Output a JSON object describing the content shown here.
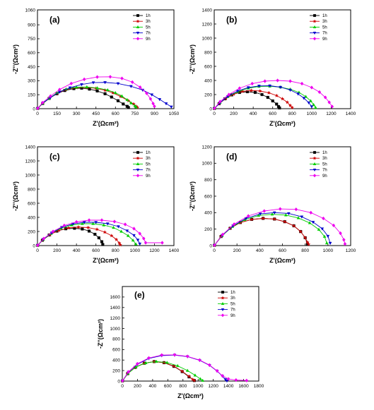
{
  "colors": {
    "1h": "#000000",
    "3h": "#cc0000",
    "5h": "#00cc00",
    "7h": "#0000cc",
    "9h": "#ee00ee"
  },
  "markers": {
    "1h": "square",
    "3h": "star",
    "5h": "triangle-up",
    "7h": "triangle-down",
    "9h": "diamond"
  },
  "chart_data": [
    {
      "panel": "a",
      "label": "(a)",
      "type": "scatter",
      "xlabel": "Z'(Ωcm²)",
      "ylabel": "-Z''(Ωcm²)",
      "xlim": [
        0,
        1050
      ],
      "ylim": [
        0,
        1060
      ],
      "xticks": [
        0,
        150,
        300,
        450,
        600,
        750,
        900,
        1050
      ],
      "yticks": [
        0,
        150,
        300,
        450,
        600,
        750,
        900,
        1060
      ],
      "yticklabels": [
        "0",
        "150",
        "300",
        "450",
        "600",
        "750",
        "900",
        "1060"
      ],
      "legend": "top-right",
      "series": [
        {
          "name": "1h",
          "x": [
            2,
            40,
            90,
            150,
            210,
            280,
            340,
            400,
            460,
            520,
            570,
            620,
            660,
            690,
            700
          ],
          "y": [
            3,
            55,
            110,
            160,
            195,
            215,
            220,
            210,
            190,
            160,
            125,
            85,
            50,
            25,
            12
          ]
        },
        {
          "name": "3h",
          "x": [
            2,
            40,
            90,
            150,
            220,
            300,
            380,
            450,
            520,
            580,
            640,
            700,
            740,
            760,
            770
          ],
          "y": [
            3,
            55,
            110,
            165,
            205,
            225,
            228,
            218,
            198,
            170,
            130,
            85,
            50,
            25,
            12
          ]
        },
        {
          "name": "5h",
          "x": [
            2,
            40,
            90,
            150,
            220,
            300,
            380,
            460,
            540,
            600,
            650,
            690,
            720,
            750,
            760
          ],
          "y": [
            3,
            55,
            110,
            170,
            210,
            230,
            232,
            222,
            200,
            170,
            135,
            95,
            60,
            30,
            15
          ]
        },
        {
          "name": "7h",
          "x": [
            2,
            40,
            100,
            170,
            250,
            340,
            430,
            520,
            620,
            720,
            810,
            880,
            940,
            990,
            1030
          ],
          "y": [
            3,
            60,
            120,
            180,
            225,
            260,
            280,
            282,
            270,
            240,
            200,
            150,
            100,
            55,
            20
          ]
        },
        {
          "name": "9h",
          "x": [
            2,
            40,
            100,
            170,
            260,
            360,
            460,
            560,
            650,
            730,
            790,
            840,
            870,
            890,
            900
          ],
          "y": [
            3,
            65,
            135,
            205,
            270,
            315,
            340,
            342,
            325,
            285,
            230,
            165,
            105,
            55,
            25
          ]
        }
      ]
    },
    {
      "panel": "b",
      "label": "(b)",
      "type": "scatter",
      "xlabel": "Z'(Ωcm²)",
      "ylabel": "-Z''(Ωcm²)",
      "xlim": [
        0,
        1400
      ],
      "ylim": [
        0,
        1400
      ],
      "xticks": [
        0,
        200,
        400,
        600,
        800,
        1000,
        1200,
        1400
      ],
      "yticks": [
        0,
        200,
        400,
        600,
        800,
        1000,
        1200,
        1400
      ],
      "legend": "top-right",
      "series": [
        {
          "name": "1h",
          "x": [
            2,
            50,
            110,
            180,
            260,
            340,
            420,
            490,
            550,
            600,
            640,
            660,
            670
          ],
          "y": [
            3,
            70,
            140,
            195,
            230,
            240,
            230,
            200,
            160,
            110,
            65,
            30,
            10
          ]
        },
        {
          "name": "3h",
          "x": [
            2,
            50,
            120,
            200,
            290,
            380,
            470,
            560,
            640,
            700,
            750,
            780,
            800
          ],
          "y": [
            3,
            70,
            145,
            205,
            245,
            258,
            250,
            225,
            185,
            140,
            90,
            45,
            15
          ]
        },
        {
          "name": "5h",
          "x": [
            2,
            60,
            140,
            240,
            350,
            460,
            570,
            680,
            780,
            870,
            940,
            990,
            1020,
            1040
          ],
          "y": [
            3,
            85,
            170,
            240,
            290,
            315,
            318,
            305,
            275,
            230,
            170,
            110,
            55,
            15
          ]
        },
        {
          "name": "7h",
          "x": [
            2,
            60,
            140,
            240,
            350,
            460,
            570,
            680,
            780,
            860,
            920,
            970,
            1000
          ],
          "y": [
            3,
            85,
            175,
            250,
            300,
            322,
            325,
            305,
            265,
            210,
            150,
            85,
            30
          ]
        },
        {
          "name": "9h",
          "x": [
            2,
            60,
            150,
            260,
            390,
            520,
            650,
            780,
            900,
            1000,
            1080,
            1140,
            1180,
            1210
          ],
          "y": [
            3,
            100,
            200,
            290,
            355,
            390,
            400,
            390,
            355,
            300,
            235,
            160,
            90,
            30
          ]
        }
      ]
    },
    {
      "panel": "c",
      "label": "(c)",
      "type": "scatter",
      "xlabel": "Z'(Ωcm²)",
      "ylabel": "-Z''(Ωcm²)",
      "xlim": [
        0,
        1400
      ],
      "ylim": [
        0,
        1400
      ],
      "xticks": [
        0,
        200,
        400,
        600,
        800,
        1000,
        1200,
        1400
      ],
      "yticks": [
        0,
        200,
        400,
        600,
        800,
        1000,
        1200,
        1400
      ],
      "legend": "top-right",
      "series": [
        {
          "name": "1h",
          "x": [
            2,
            50,
            120,
            200,
            290,
            380,
            460,
            530,
            590,
            630,
            660,
            670
          ],
          "y": [
            3,
            75,
            150,
            205,
            238,
            245,
            235,
            205,
            160,
            110,
            55,
            15
          ]
        },
        {
          "name": "3h",
          "x": [
            2,
            55,
            130,
            220,
            320,
            420,
            520,
            610,
            690,
            760,
            810,
            840,
            850
          ],
          "y": [
            3,
            78,
            155,
            215,
            250,
            262,
            255,
            230,
            190,
            140,
            85,
            35,
            10
          ]
        },
        {
          "name": "5h",
          "x": [
            2,
            60,
            140,
            240,
            350,
            460,
            570,
            680,
            780,
            860,
            930,
            980,
            1010
          ],
          "y": [
            3,
            85,
            170,
            245,
            290,
            310,
            310,
            290,
            255,
            200,
            140,
            75,
            20
          ]
        },
        {
          "name": "7h",
          "x": [
            2,
            60,
            145,
            250,
            365,
            480,
            600,
            720,
            830,
            920,
            990,
            1030,
            1050
          ],
          "y": [
            3,
            90,
            180,
            260,
            308,
            330,
            330,
            310,
            270,
            210,
            145,
            80,
            25
          ]
        },
        {
          "name": "9h",
          "x": [
            2,
            65,
            160,
            275,
            400,
            530,
            660,
            790,
            900,
            990,
            1050,
            1090,
            1110,
            1280
          ],
          "y": [
            3,
            100,
            200,
            285,
            335,
            360,
            360,
            340,
            300,
            240,
            170,
            100,
            40,
            40
          ]
        }
      ]
    },
    {
      "panel": "d",
      "label": "(d)",
      "type": "scatter",
      "xlabel": "Z'(Ωcm²)",
      "ylabel": "-Z''(Ωcm²)",
      "xlim": [
        0,
        1200
      ],
      "ylim": [
        0,
        1200
      ],
      "xticks": [
        0,
        200,
        400,
        600,
        800,
        1000,
        1200
      ],
      "yticks": [
        0,
        200,
        400,
        600,
        800,
        1000,
        1200
      ],
      "legend": "top-right",
      "series": [
        {
          "name": "1h",
          "x": [
            2,
            60,
            140,
            230,
            330,
            430,
            530,
            620,
            700,
            760,
            800,
            820
          ],
          "y": [
            3,
            110,
            210,
            280,
            318,
            330,
            322,
            290,
            240,
            170,
            95,
            20
          ]
        },
        {
          "name": "3h",
          "x": [
            2,
            60,
            140,
            230,
            330,
            430,
            530,
            620,
            700,
            760,
            800,
            820,
            830
          ],
          "y": [
            3,
            110,
            210,
            280,
            318,
            330,
            322,
            290,
            240,
            170,
            95,
            40,
            15
          ]
        },
        {
          "name": "5h",
          "x": [
            2,
            70,
            160,
            270,
            390,
            510,
            630,
            740,
            840,
            920,
            970,
            990
          ],
          "y": [
            3,
            120,
            230,
            315,
            365,
            380,
            370,
            335,
            275,
            195,
            110,
            30
          ]
        },
        {
          "name": "7h",
          "x": [
            2,
            70,
            165,
            280,
            405,
            530,
            655,
            770,
            870,
            950,
            1000,
            1020
          ],
          "y": [
            3,
            125,
            240,
            330,
            385,
            400,
            390,
            350,
            285,
            205,
            115,
            30
          ]
        },
        {
          "name": "9h",
          "x": [
            2,
            75,
            175,
            300,
            440,
            580,
            720,
            850,
            960,
            1050,
            1110,
            1140,
            1150
          ],
          "y": [
            3,
            135,
            260,
            360,
            420,
            445,
            440,
            400,
            330,
            245,
            150,
            70,
            20
          ]
        }
      ]
    },
    {
      "panel": "e",
      "label": "(e)",
      "type": "scatter",
      "xlabel": "Z'(Ωcm²)",
      "ylabel": "-Z''(Ωcm²)",
      "xlim": [
        0,
        1800
      ],
      "ylim": [
        0,
        1800
      ],
      "xticks": [
        0,
        200,
        400,
        600,
        800,
        1000,
        1200,
        1400,
        1600,
        1800
      ],
      "yticks": [
        0,
        200,
        400,
        600,
        800,
        1000,
        1200,
        1400,
        1600
      ],
      "legend": "top-right",
      "series": [
        {
          "name": "1h",
          "x": [
            2,
            70,
            170,
            290,
            420,
            550,
            680,
            790,
            880,
            950
          ],
          "y": [
            3,
            140,
            260,
            340,
            370,
            350,
            280,
            180,
            80,
            10
          ]
        },
        {
          "name": "3h",
          "x": [
            2,
            70,
            170,
            290,
            420,
            550,
            680,
            790,
            880,
            930,
            950
          ],
          "y": [
            3,
            140,
            260,
            340,
            370,
            352,
            285,
            185,
            90,
            30,
            10
          ]
        },
        {
          "name": "5h",
          "x": [
            2,
            75,
            180,
            310,
            450,
            590,
            730,
            860,
            960,
            1030,
            1060
          ],
          "y": [
            3,
            145,
            270,
            345,
            372,
            352,
            290,
            200,
            110,
            40,
            10
          ]
        },
        {
          "name": "7h",
          "x": [
            2,
            80,
            200,
            350,
            520,
            690,
            860,
            1020,
            1150,
            1250,
            1320,
            1360,
            1380
          ],
          "y": [
            3,
            170,
            320,
            430,
            485,
            495,
            465,
            395,
            300,
            190,
            95,
            30,
            5
          ]
        },
        {
          "name": "9h",
          "x": [
            2,
            80,
            200,
            350,
            520,
            690,
            860,
            1020,
            1150,
            1250,
            1320,
            1400,
            1500,
            1640
          ],
          "y": [
            3,
            175,
            330,
            440,
            495,
            500,
            470,
            400,
            305,
            195,
            100,
            40,
            20,
            10
          ]
        }
      ]
    }
  ]
}
